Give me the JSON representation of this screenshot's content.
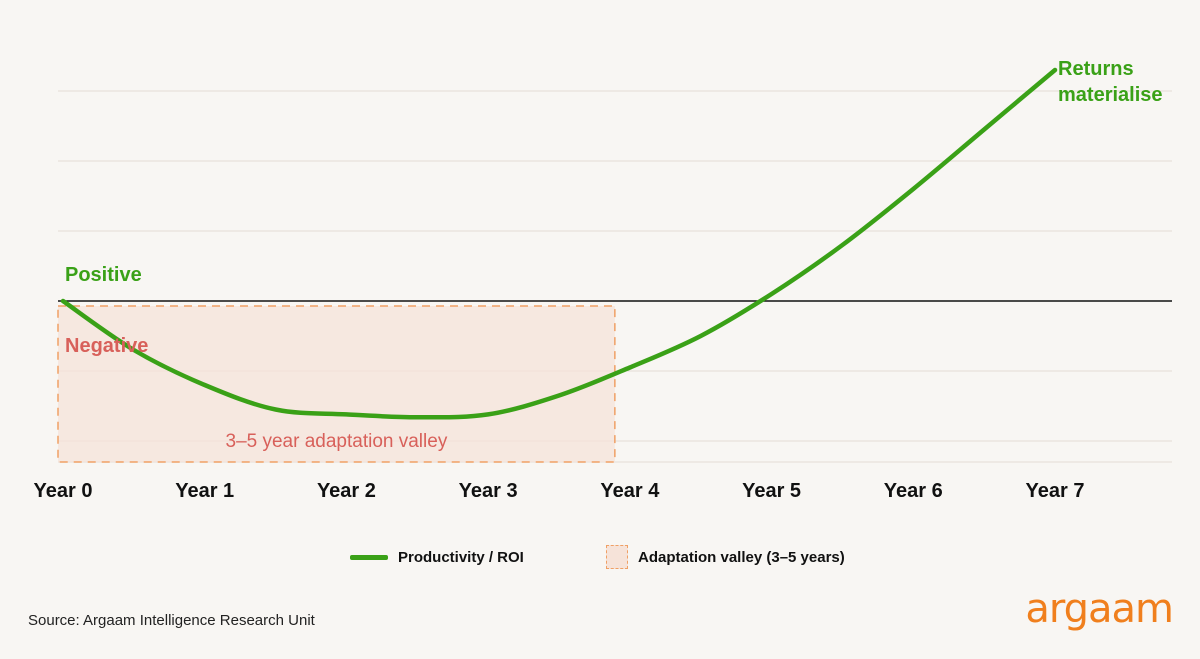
{
  "chart_data": {
    "type": "line",
    "x_categories": [
      "Year 0",
      "Year 1",
      "Year 2",
      "Year 3",
      "Year 4",
      "Year 5",
      "Year 6",
      "Year 7"
    ],
    "series": [
      {
        "name": "Productivity / ROI",
        "color": "#3aa117",
        "x": [
          0,
          0.5,
          1,
          1.5,
          2,
          2.5,
          3,
          3.5,
          4,
          4.5,
          5,
          5.5,
          6,
          6.5,
          7
        ],
        "y": [
          0,
          -0.7,
          -1.2,
          -1.55,
          -1.62,
          -1.66,
          -1.62,
          -1.35,
          -0.95,
          -0.5,
          0.1,
          0.8,
          1.6,
          2.45,
          3.3
        ]
      }
    ],
    "ylim": [
      -2.3,
      3.9
    ],
    "annotations": {
      "positive": "Positive",
      "negative": "Negative",
      "returns_line1": "Returns",
      "returns_line2": "materialise",
      "valley_label": "3–5 year adaptation valley"
    },
    "valley_range": [
      0,
      4
    ],
    "grid": true,
    "legend_position": "bottom-center"
  },
  "legend": [
    {
      "label": "Productivity / ROI",
      "kind": "line"
    },
    {
      "label": "Adaptation valley (3–5 years)",
      "kind": "box"
    }
  ],
  "source": "Source: Argaam Intelligence Research Unit",
  "logo_text": "argaam",
  "colors": {
    "line": "#3aa117",
    "positive": "#3aa117",
    "negative": "#d8605a",
    "valley_fill": "#f6e3d9",
    "valley_border": "#f0a065",
    "grid": "#e4dcd6",
    "zero_line": "#111111",
    "logo": "#f07f1d",
    "background": "#f8f6f3"
  }
}
